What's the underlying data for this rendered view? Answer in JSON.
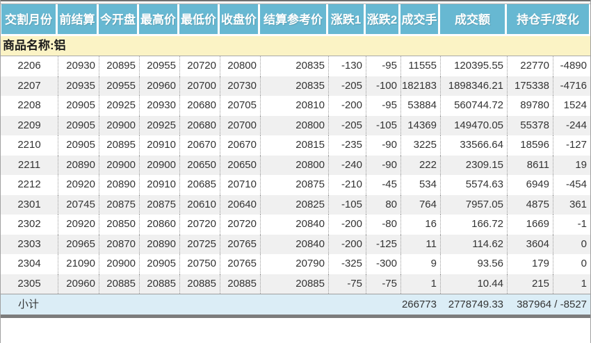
{
  "table": {
    "columns": [
      "交割月份",
      "前结算",
      "今开盘",
      "最高价",
      "最低价",
      "收盘价",
      "结算参考价",
      "涨跌1",
      "涨跌2",
      "成交手",
      "成交额",
      "持仓手/变化"
    ],
    "product_row": {
      "label": "商品名称:铝"
    },
    "rows": [
      [
        "2206",
        "20930",
        "20895",
        "20955",
        "20720",
        "20800",
        "20835",
        "-130",
        "-95",
        "11555",
        "120395.55",
        "22770",
        "-4890"
      ],
      [
        "2207",
        "20935",
        "20955",
        "20960",
        "20700",
        "20730",
        "20835",
        "-205",
        "-100",
        "182183",
        "1898346.21",
        "175338",
        "-4716"
      ],
      [
        "2208",
        "20905",
        "20925",
        "20930",
        "20680",
        "20705",
        "20810",
        "-200",
        "-95",
        "53884",
        "560744.72",
        "89780",
        "1524"
      ],
      [
        "2209",
        "20905",
        "20900",
        "20925",
        "20680",
        "20700",
        "20800",
        "-205",
        "-105",
        "14369",
        "149470.05",
        "55378",
        "-244"
      ],
      [
        "2210",
        "20905",
        "20895",
        "20910",
        "20670",
        "20670",
        "20815",
        "-235",
        "-90",
        "3225",
        "33566.64",
        "18596",
        "-127"
      ],
      [
        "2211",
        "20890",
        "20900",
        "20900",
        "20650",
        "20650",
        "20800",
        "-240",
        "-90",
        "222",
        "2309.15",
        "8611",
        "19"
      ],
      [
        "2212",
        "20920",
        "20890",
        "20910",
        "20685",
        "20710",
        "20875",
        "-210",
        "-45",
        "534",
        "5574.63",
        "6949",
        "-454"
      ],
      [
        "2301",
        "20745",
        "20875",
        "20875",
        "20610",
        "20640",
        "20825",
        "-105",
        "80",
        "764",
        "7957.05",
        "4875",
        "361"
      ],
      [
        "2302",
        "20920",
        "20850",
        "20860",
        "20720",
        "20720",
        "20840",
        "-200",
        "-80",
        "16",
        "166.72",
        "1669",
        "-1"
      ],
      [
        "2303",
        "20965",
        "20870",
        "20890",
        "20725",
        "20765",
        "20840",
        "-200",
        "-125",
        "11",
        "114.62",
        "3604",
        "0"
      ],
      [
        "2304",
        "21090",
        "20900",
        "20905",
        "20750",
        "20765",
        "20790",
        "-325",
        "-300",
        "9",
        "93.56",
        "179",
        "0"
      ],
      [
        "2305",
        "20960",
        "20885",
        "20885",
        "20885",
        "20885",
        "20885",
        "-75",
        "-75",
        "1",
        "10.44",
        "215",
        "1"
      ]
    ],
    "footer": {
      "label": "小计",
      "volume": "266773",
      "turnover": "2778749.33",
      "open_interest_change": "387964 / -8527"
    }
  },
  "colors": {
    "header_bg": "#67b8d2",
    "header_text": "#ffffff",
    "product_row_bg": "#fbf3c5",
    "row_alt_bg": "#f0f0f0",
    "footer_bg": "#dbedf6",
    "body_text": "#333333"
  }
}
